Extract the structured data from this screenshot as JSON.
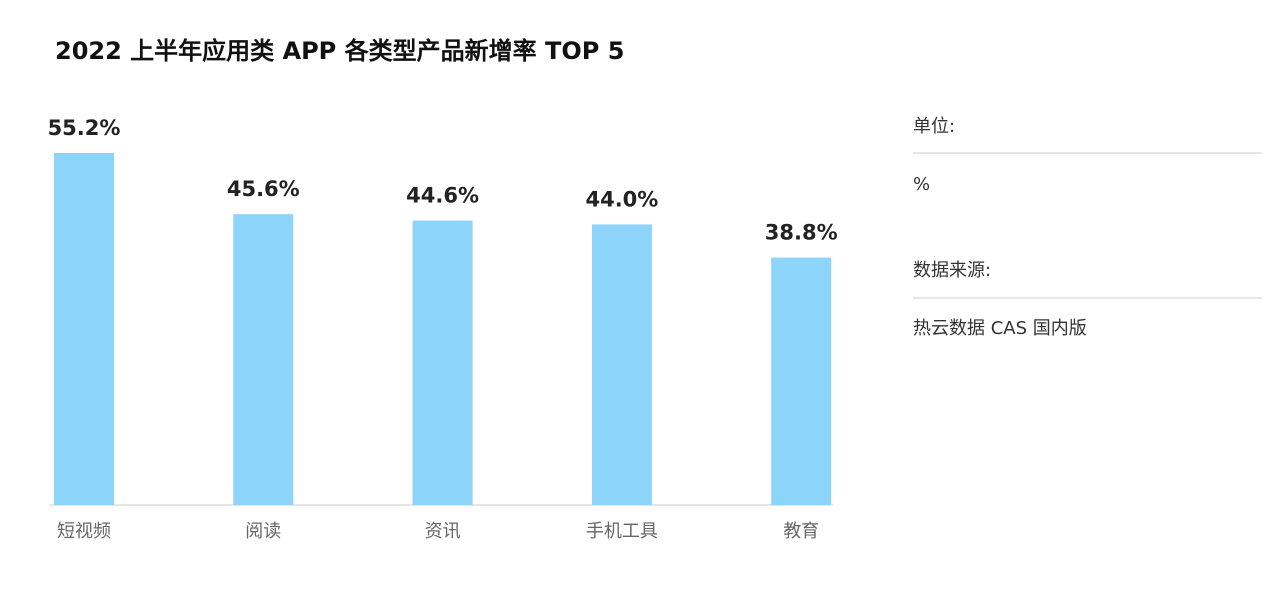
{
  "chart_data": {
    "type": "bar",
    "title": "2022 上半年应用类 APP 各类型产品新增率 TOP 5",
    "categories": [
      "短视频",
      "阅读",
      "资讯",
      "手机工具",
      "教育"
    ],
    "values": [
      55.2,
      45.6,
      44.6,
      44.0,
      38.8
    ],
    "value_labels": [
      "55.2%",
      "45.6%",
      "44.6%",
      "44.0%",
      "38.8%"
    ],
    "color": "#8dd4fb",
    "unit_label": "单位:",
    "unit": "%",
    "source_label": "数据来源:",
    "source": "热云数据 CAS 国内版"
  }
}
